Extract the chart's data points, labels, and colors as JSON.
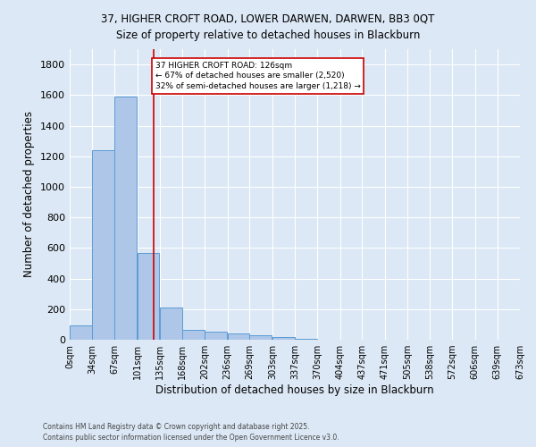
{
  "title_line1": "37, HIGHER CROFT ROAD, LOWER DARWEN, DARWEN, BB3 0QT",
  "title_line2": "Size of property relative to detached houses in Blackburn",
  "xlabel": "Distribution of detached houses by size in Blackburn",
  "ylabel": "Number of detached properties",
  "bin_labels": [
    "0sqm",
    "34sqm",
    "67sqm",
    "101sqm",
    "135sqm",
    "168sqm",
    "202sqm",
    "236sqm",
    "269sqm",
    "303sqm",
    "337sqm",
    "370sqm",
    "404sqm",
    "437sqm",
    "471sqm",
    "505sqm",
    "538sqm",
    "572sqm",
    "606sqm",
    "639sqm",
    "673sqm"
  ],
  "bin_edges": [
    0,
    34,
    67,
    101,
    135,
    168,
    202,
    236,
    269,
    303,
    337,
    370,
    404,
    437,
    471,
    505,
    538,
    572,
    606,
    639,
    673
  ],
  "bar_heights": [
    95,
    1240,
    1590,
    565,
    210,
    65,
    50,
    40,
    28,
    15,
    5,
    2,
    1,
    0,
    0,
    0,
    0,
    0,
    0,
    0
  ],
  "bar_color": "#aec6e8",
  "bar_edge_color": "#5b9bd5",
  "vline_x": 126,
  "vline_color": "#cc0000",
  "annotation_text": "37 HIGHER CROFT ROAD: 126sqm\n← 67% of detached houses are smaller (2,520)\n32% of semi-detached houses are larger (1,218) →",
  "annotation_box_color": "#ffffff",
  "annotation_border_color": "#cc0000",
  "ylim": [
    0,
    1900
  ],
  "yticks": [
    0,
    200,
    400,
    600,
    800,
    1000,
    1200,
    1400,
    1600,
    1800
  ],
  "xlim": [
    0,
    673
  ],
  "background_color": "#dce8f5",
  "grid_color": "#ffffff",
  "title_fontsize": 8.5,
  "footnote": "Contains HM Land Registry data © Crown copyright and database right 2025.\nContains public sector information licensed under the Open Government Licence v3.0."
}
